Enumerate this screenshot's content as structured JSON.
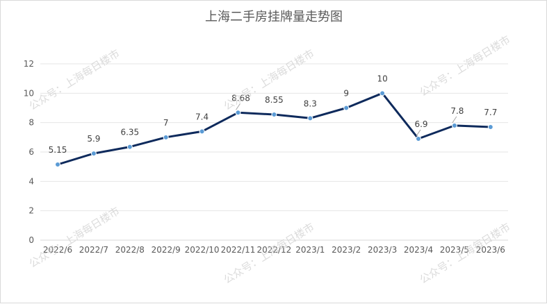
{
  "watermark_text": "公众号：上海每日楼市",
  "colors": {
    "line": "#0e2a5c",
    "marker": "#5b9bd5"
  },
  "chart_data": {
    "type": "line",
    "title": "上海二手房挂牌量走势图",
    "xlabel": "",
    "ylabel": "",
    "ylim": [
      0,
      12
    ],
    "yticks": [
      0,
      2,
      4,
      6,
      8,
      10,
      12
    ],
    "grid": true,
    "categories": [
      "2022/6",
      "2022/7",
      "2022/8",
      "2022/9",
      "2022/10",
      "2022/11",
      "2022/12",
      "2023/1",
      "2023/2",
      "2023/3",
      "2023/4",
      "2023/5",
      "2023/6"
    ],
    "series": [
      {
        "values": [
          5.15,
          5.9,
          6.35,
          7,
          7.4,
          8.68,
          8.55,
          8.3,
          9,
          10,
          6.9,
          7.8,
          7.7
        ],
        "labels": [
          "5.15",
          "5.9",
          "6.35",
          "7",
          "7.4",
          "8.68",
          "8.55",
          "8.3",
          "9",
          "10",
          "6.9",
          "7.8",
          "7.7"
        ]
      }
    ]
  }
}
